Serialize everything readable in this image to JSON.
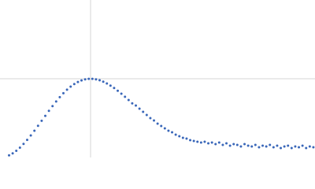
{
  "chart_data": {
    "type": "scatter",
    "color": "#3a67b9",
    "grid": true,
    "xlim": [
      0,
      3.478
    ],
    "ylim": [
      0,
      2
    ],
    "xticks": [
      1
    ],
    "yticks": [
      1
    ],
    "x": [
      0.1,
      0.14,
      0.18,
      0.22,
      0.26,
      0.3,
      0.34,
      0.38,
      0.42,
      0.46,
      0.5,
      0.54,
      0.58,
      0.62,
      0.66,
      0.7,
      0.74,
      0.78,
      0.82,
      0.86,
      0.9,
      0.94,
      0.98,
      1.02,
      1.06,
      1.1,
      1.14,
      1.18,
      1.22,
      1.26,
      1.3,
      1.34,
      1.38,
      1.42,
      1.46,
      1.5,
      1.54,
      1.58,
      1.62,
      1.66,
      1.7,
      1.74,
      1.78,
      1.82,
      1.86,
      1.9,
      1.94,
      1.98,
      2.02,
      2.06,
      2.1,
      2.14,
      2.18,
      2.22,
      2.26,
      2.3,
      2.34,
      2.38,
      2.42,
      2.46,
      2.5,
      2.54,
      2.58,
      2.62,
      2.66,
      2.7,
      2.74,
      2.78,
      2.82,
      2.86,
      2.9,
      2.94,
      2.98,
      3.02,
      3.06,
      3.1,
      3.14,
      3.18,
      3.22,
      3.26,
      3.3,
      3.34,
      3.38,
      3.42,
      3.46
    ],
    "values": [
      0.027,
      0.052,
      0.085,
      0.125,
      0.172,
      0.224,
      0.28,
      0.34,
      0.402,
      0.466,
      0.529,
      0.592,
      0.653,
      0.711,
      0.766,
      0.816,
      0.861,
      0.9,
      0.933,
      0.959,
      0.979,
      0.993,
      0.999,
      0.999,
      0.993,
      0.981,
      0.963,
      0.94,
      0.913,
      0.882,
      0.848,
      0.81,
      0.771,
      0.73,
      0.687,
      0.66,
      0.62,
      0.58,
      0.54,
      0.5,
      0.47,
      0.43,
      0.4,
      0.37,
      0.34,
      0.32,
      0.29,
      0.27,
      0.25,
      0.24,
      0.22,
      0.21,
      0.2,
      0.19,
      0.2,
      0.18,
      0.19,
      0.17,
      0.19,
      0.16,
      0.18,
      0.15,
      0.17,
      0.16,
      0.14,
      0.17,
      0.15,
      0.14,
      0.16,
      0.13,
      0.15,
      0.14,
      0.16,
      0.13,
      0.15,
      0.12,
      0.14,
      0.15,
      0.12,
      0.14,
      0.13,
      0.15,
      0.12,
      0.14,
      0.13
    ]
  }
}
